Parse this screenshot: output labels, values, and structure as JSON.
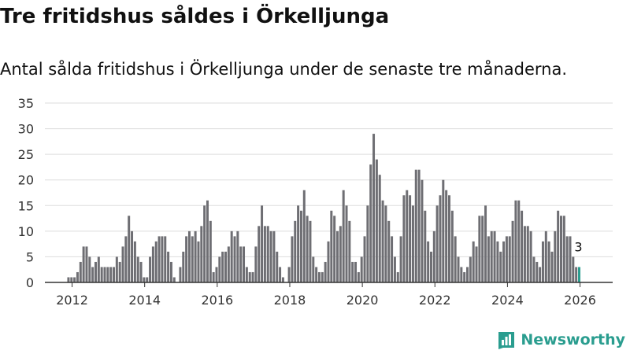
{
  "title": "Tre fritidshus såldes i Örkelljunga",
  "subtitle": "Antal sålda fritidshus i Örkelljunga under de senaste tre månaderna.",
  "brand": {
    "name": "Newsworthy"
  },
  "colors": {
    "bar": "#6e6e73",
    "highlight": "#2a9d8f",
    "grid": "#dddddd",
    "axis": "#333333",
    "text": "#333333"
  },
  "chart_data": {
    "type": "bar",
    "title": "Tre fritidshus såldes i Örkelljunga",
    "xlabel": "",
    "ylabel": "",
    "ylim": [
      0,
      35
    ],
    "yticks": [
      "0",
      "5",
      "10",
      "15",
      "20",
      "25",
      "30",
      "35"
    ],
    "xticks": [
      "2012",
      "2014",
      "2016",
      "2018",
      "2020",
      "2022",
      "2024",
      "2026"
    ],
    "xrange": [
      2011.25,
      2026.9
    ],
    "period_start": 2011.9,
    "period_step": 0.0833,
    "values": [
      1,
      1,
      1,
      2,
      4,
      7,
      7,
      5,
      3,
      4,
      5,
      3,
      3,
      3,
      3,
      3,
      5,
      4,
      7,
      9,
      13,
      10,
      8,
      5,
      4,
      1,
      1,
      5,
      7,
      8,
      9,
      9,
      9,
      6,
      4,
      1,
      0,
      3,
      6,
      9,
      10,
      9,
      10,
      8,
      11,
      15,
      16,
      12,
      2,
      3,
      5,
      6,
      6,
      7,
      10,
      9,
      10,
      7,
      7,
      3,
      2,
      2,
      7,
      11,
      15,
      11,
      11,
      10,
      10,
      6,
      3,
      1,
      0,
      3,
      9,
      12,
      15,
      14,
      18,
      13,
      12,
      5,
      3,
      2,
      2,
      4,
      8,
      14,
      13,
      10,
      11,
      18,
      15,
      12,
      4,
      4,
      2,
      5,
      9,
      15,
      23,
      29,
      24,
      21,
      16,
      15,
      12,
      9,
      5,
      2,
      9,
      17,
      18,
      17,
      15,
      22,
      22,
      20,
      14,
      8,
      6,
      10,
      15,
      17,
      20,
      18,
      17,
      14,
      9,
      5,
      3,
      2,
      3,
      5,
      8,
      7,
      13,
      13,
      15,
      9,
      10,
      10,
      8,
      6,
      8,
      9,
      9,
      12,
      16,
      16,
      14,
      11,
      11,
      10,
      5,
      4,
      3,
      8,
      10,
      8,
      6,
      10,
      14,
      13,
      13,
      9,
      9,
      5,
      3,
      3
    ],
    "series": [
      {
        "name": "Antal sålda fritidshus",
        "values": "see values"
      }
    ],
    "highlight_last_n": 1,
    "last_value_label": "3"
  }
}
